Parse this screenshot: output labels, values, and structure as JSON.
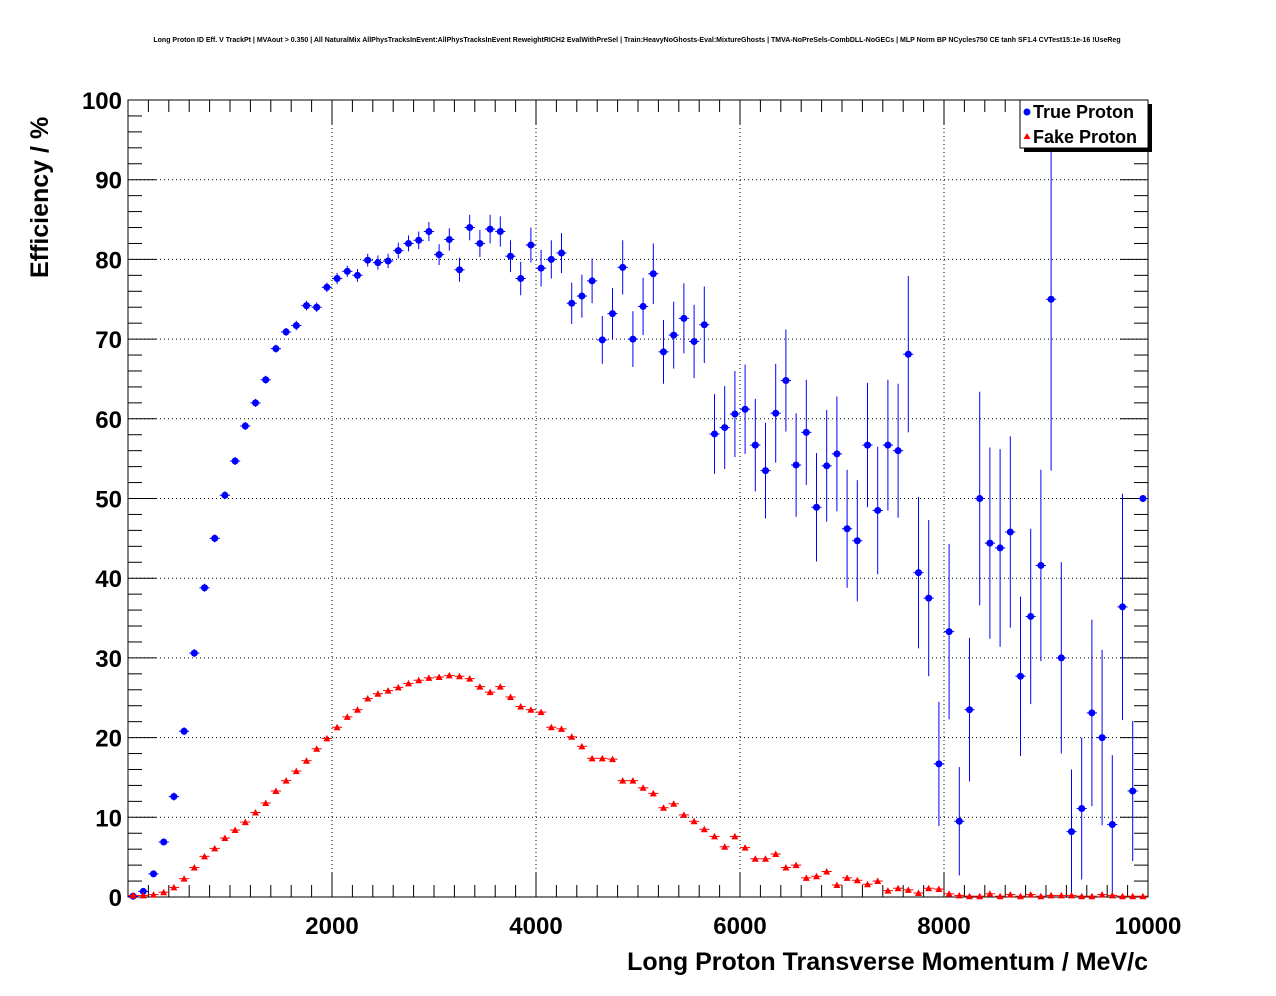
{
  "chart_data": {
    "type": "scatter",
    "title": "Long Proton ID Eff. V TrackPt | MVAout > 0.350 | All NaturalMix AllPhysTracksInEvent:AllPhysTracksInEvent ReweightRICH2 EvalWithPreSel | Train:HeavyNoGhosts-Eval:MixtureGhosts | TMVA-NoPreSels-CombDLL-NoGECs | MLP Norm BP NCycles750 CE tanh SF1.4 CVTest15:1e-16 !UseReg",
    "xlabel": "Long Proton Transverse Momentum / MeV/c",
    "ylabel": "Efficiency / %",
    "xlim": [
      0,
      10000
    ],
    "ylim": [
      0,
      100
    ],
    "x_ticks": [
      2000,
      4000,
      6000,
      8000,
      10000
    ],
    "y_ticks": [
      0,
      10,
      20,
      30,
      40,
      50,
      60,
      70,
      80,
      90,
      100
    ],
    "grid": true,
    "legend_position": "top-right",
    "bin_width": 100,
    "x": [
      50,
      150,
      250,
      350,
      450,
      550,
      650,
      750,
      850,
      950,
      1050,
      1150,
      1250,
      1350,
      1450,
      1550,
      1650,
      1750,
      1850,
      1950,
      2050,
      2150,
      2250,
      2350,
      2450,
      2550,
      2650,
      2750,
      2850,
      2950,
      3050,
      3150,
      3250,
      3350,
      3450,
      3550,
      3650,
      3750,
      3850,
      3950,
      4050,
      4150,
      4250,
      4350,
      4450,
      4550,
      4650,
      4750,
      4850,
      4950,
      5050,
      5150,
      5250,
      5350,
      5450,
      5550,
      5650,
      5750,
      5850,
      5950,
      6050,
      6150,
      6250,
      6350,
      6450,
      6550,
      6650,
      6750,
      6850,
      6950,
      7050,
      7150,
      7250,
      7350,
      7450,
      7550,
      7650,
      7750,
      7850,
      7950,
      8050,
      8150,
      8250,
      8350,
      8450,
      8550,
      8650,
      8750,
      8850,
      8950,
      9050,
      9150,
      9250,
      9350,
      9450,
      9550,
      9650,
      9750,
      9850,
      9950
    ],
    "series": [
      {
        "name": "True Proton",
        "color": "#0000ff",
        "marker": "circle",
        "values": [
          0.1,
          0.7,
          2.9,
          6.9,
          12.6,
          20.8,
          30.6,
          38.8,
          45.0,
          50.4,
          54.7,
          59.1,
          62.0,
          64.9,
          68.8,
          70.9,
          71.7,
          74.2,
          74.0,
          76.5,
          77.6,
          78.5,
          78.0,
          79.9,
          79.6,
          79.8,
          81.1,
          82.0,
          82.4,
          83.5,
          80.6,
          82.5,
          78.7,
          84.0,
          82.0,
          83.8,
          83.5,
          80.4,
          77.6,
          81.8,
          78.9,
          80.0,
          80.8,
          74.5,
          75.4,
          77.3,
          69.9,
          73.2,
          79.0,
          70.0,
          74.1,
          78.2,
          68.4,
          70.5,
          72.6,
          69.7,
          71.8,
          58.1,
          58.9,
          60.6,
          61.2,
          56.7,
          53.5,
          60.7,
          64.8,
          54.2,
          58.3,
          48.9,
          54.1,
          55.6,
          46.2,
          44.7,
          56.7,
          48.5,
          56.7,
          56.0,
          68.1,
          40.7,
          37.5,
          16.7,
          33.3,
          9.5,
          23.5,
          50.0,
          44.4,
          43.8,
          45.8,
          27.7,
          35.2,
          41.6,
          75.0,
          30.0,
          8.2,
          11.1,
          23.1,
          20.0,
          9.1,
          36.4,
          13.3,
          50.0
        ],
        "errors": [
          0.1,
          0.2,
          0.3,
          0.4,
          0.5,
          0.5,
          0.5,
          0.5,
          0.5,
          0.5,
          0.5,
          0.5,
          0.5,
          0.5,
          0.5,
          0.5,
          0.6,
          0.6,
          0.6,
          0.6,
          0.7,
          0.7,
          0.8,
          0.8,
          0.9,
          0.9,
          1.0,
          1.0,
          1.1,
          1.2,
          1.3,
          1.4,
          1.5,
          1.6,
          1.7,
          1.8,
          1.9,
          2.0,
          2.1,
          2.2,
          2.3,
          2.4,
          2.5,
          2.6,
          2.7,
          2.8,
          3.0,
          3.2,
          3.4,
          3.5,
          3.6,
          3.8,
          4.0,
          4.2,
          4.4,
          4.6,
          4.8,
          5.0,
          5.2,
          5.4,
          5.6,
          5.8,
          6.0,
          6.2,
          6.4,
          6.5,
          6.6,
          6.8,
          7.0,
          7.2,
          7.4,
          7.6,
          7.8,
          8.0,
          8.2,
          8.4,
          9.8,
          9.5,
          9.8,
          7.8,
          11.0,
          6.8,
          9.0,
          13.4,
          12.0,
          12.4,
          12.0,
          10.0,
          11.0,
          12.0,
          21.5,
          12.0,
          7.8,
          8.9,
          11.7,
          11.0,
          8.7,
          14.2,
          8.8,
          0
        ]
      },
      {
        "name": "Fake Proton",
        "color": "#ff0000",
        "marker": "triangle",
        "values": [
          0.2,
          0.2,
          0.3,
          0.6,
          1.2,
          2.3,
          3.7,
          5.1,
          6.1,
          7.4,
          8.4,
          9.4,
          10.6,
          11.8,
          13.3,
          14.6,
          15.8,
          17.1,
          18.6,
          19.9,
          21.3,
          22.6,
          23.5,
          24.9,
          25.5,
          25.9,
          26.3,
          26.8,
          27.2,
          27.5,
          27.6,
          27.8,
          27.7,
          27.4,
          26.4,
          25.7,
          26.4,
          25.1,
          23.9,
          23.5,
          23.2,
          21.3,
          21.1,
          20.1,
          18.9,
          17.4,
          17.4,
          17.3,
          14.6,
          14.6,
          13.7,
          13.0,
          11.2,
          11.7,
          10.3,
          9.5,
          8.5,
          7.6,
          6.3,
          7.6,
          6.2,
          4.8,
          4.8,
          5.4,
          3.7,
          4.0,
          2.4,
          2.6,
          3.2,
          1.5,
          2.4,
          2.1,
          1.6,
          2.0,
          0.8,
          1.1,
          0.9,
          0.5,
          1.1,
          1.0,
          0.4,
          0.2,
          0.1,
          0.1,
          0.4,
          0.1,
          0.3,
          0.1,
          0.3,
          0.1,
          0.2,
          0.2,
          0.2,
          0.1,
          0.1,
          0.3,
          0.2,
          0.1,
          0.1,
          0.1
        ],
        "errors": [
          0.1,
          0.1,
          0.1,
          0.1,
          0.1,
          0.1,
          0.2,
          0.2,
          0.2,
          0.2,
          0.2,
          0.2,
          0.2,
          0.2,
          0.2,
          0.2,
          0.2,
          0.2,
          0.2,
          0.2,
          0.2,
          0.2,
          0.3,
          0.3,
          0.3,
          0.3,
          0.3,
          0.3,
          0.3,
          0.3,
          0.3,
          0.3,
          0.3,
          0.3,
          0.3,
          0.3,
          0.3,
          0.3,
          0.3,
          0.3,
          0.3,
          0.3,
          0.3,
          0.3,
          0.3,
          0.3,
          0.3,
          0.3,
          0.3,
          0.3,
          0.3,
          0.3,
          0.3,
          0.3,
          0.3,
          0.3,
          0.3,
          0.3,
          0.3,
          0.3,
          0.3,
          0.3,
          0.3,
          0.3,
          0.3,
          0.3,
          0.3,
          0.3,
          0.3,
          0.3,
          0.3,
          0.3,
          0.3,
          0.3,
          0.2,
          0.2,
          0.2,
          0.2,
          0.2,
          0.2,
          0.2,
          0.2,
          0.2,
          0.2,
          0.2,
          0.2,
          0.2,
          0.2,
          0.2,
          0.2,
          0.2,
          0.2,
          0.2,
          0.2,
          0.2,
          0.2,
          0.2,
          0.2,
          0.2,
          0.2
        ]
      }
    ]
  }
}
